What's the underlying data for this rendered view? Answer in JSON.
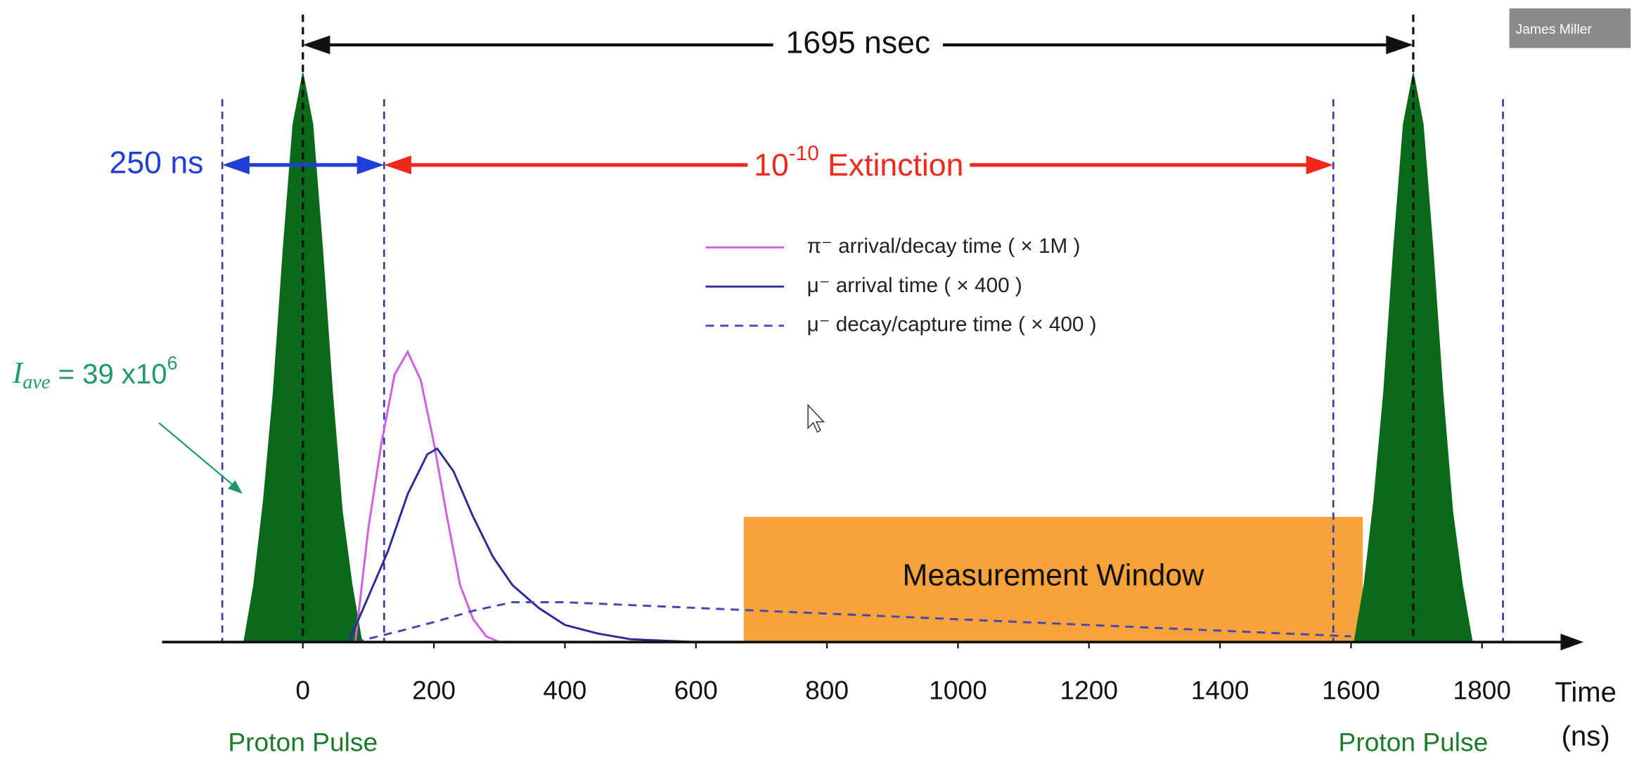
{
  "chart_data": {
    "type": "timing",
    "xlim": [
      -215,
      1955
    ],
    "ylim": [
      0,
      100
    ],
    "xticks": [
      0,
      200,
      400,
      600,
      800,
      1000,
      1200,
      1400,
      1600,
      1800
    ],
    "x_label": [
      "Time",
      "(ns)"
    ],
    "pulses": [
      {
        "label": "Proton Pulse",
        "color": "#0a6a1a",
        "x": [
          -90,
          -75,
          -60,
          -45,
          -30,
          -15,
          0,
          15,
          30,
          45,
          60,
          75,
          90
        ],
        "values": [
          0,
          10,
          25,
          44,
          69,
          91,
          100,
          91,
          69,
          44,
          23,
          10,
          0
        ]
      },
      {
        "label": "Proton Pulse",
        "color": "#0a6a1a",
        "x": [
          1605,
          1620,
          1635,
          1650,
          1665,
          1680,
          1695,
          1710,
          1725,
          1740,
          1755,
          1770,
          1785
        ],
        "values": [
          0,
          10,
          25,
          44,
          69,
          91,
          100,
          91,
          69,
          44,
          23,
          10,
          0
        ]
      }
    ],
    "series": [
      {
        "name": "π⁻ arrival/decay time ( × 1M )",
        "color": "#d25ee0",
        "dashed": false,
        "x": [
          80,
          100,
          120,
          140,
          160,
          180,
          200,
          220,
          240,
          260,
          280,
          300
        ],
        "values": [
          0,
          20,
          35,
          47,
          51,
          46,
          35,
          22,
          10,
          4,
          1,
          0
        ]
      },
      {
        "name": "μ⁻ arrival time ( × 400 )",
        "color": "#2b2b9a",
        "dashed": false,
        "x": [
          70,
          100,
          130,
          160,
          190,
          205,
          230,
          260,
          290,
          320,
          360,
          400,
          450,
          500,
          600
        ],
        "values": [
          0,
          8,
          16,
          26,
          33,
          34,
          30,
          22,
          15,
          10,
          6,
          3,
          1.5,
          0.5,
          0
        ]
      },
      {
        "name": "μ⁻ decay/capture time ( × 400 )",
        "color": "#4848b0",
        "dashed": true,
        "x": [
          80,
          150,
          200,
          260,
          320,
          400,
          600,
          800,
          1000,
          1200,
          1400,
          1600
        ],
        "values": [
          0,
          2,
          3.5,
          5.5,
          7,
          7,
          6,
          5,
          4,
          3,
          2,
          1
        ]
      }
    ],
    "vlines": [
      {
        "x": -123,
        "color": "#3a3aa0"
      },
      {
        "x": 124,
        "color": "#3a3aa0"
      },
      {
        "x": 1573,
        "color": "#3a3aa0"
      },
      {
        "x": 1832,
        "color": "#3a3aa0"
      },
      {
        "x": 0,
        "color": "#111111"
      },
      {
        "x": 1695,
        "color": "#111111"
      }
    ],
    "spans": [
      {
        "label": "1695 nsec",
        "x": [
          0,
          1695
        ],
        "color": "#111111"
      },
      {
        "label": "250 ns",
        "x": [
          -123,
          124
        ],
        "color": "#1f3fd8"
      },
      {
        "label": [
          "10",
          "-10",
          " Extinction"
        ],
        "x": [
          124,
          1573
        ],
        "color": "#f0281c"
      }
    ],
    "window": {
      "label": "Measurement Window",
      "x": [
        673,
        1618
      ],
      "y": [
        0,
        22
      ],
      "color": "#f7a33c"
    },
    "annotation": [
      "I",
      "ave",
      " = 39 x10",
      "6"
    ]
  },
  "overlay": {
    "name": "James Miller"
  }
}
